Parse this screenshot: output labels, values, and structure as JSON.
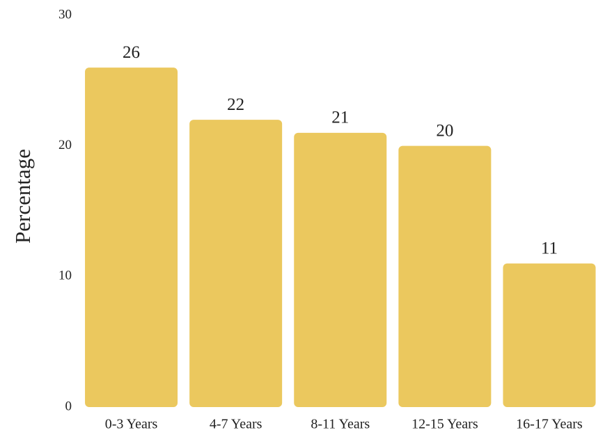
{
  "chart_data": {
    "type": "bar",
    "y_label": "Percentage",
    "categories": [
      "0-3 Years",
      "4-7 Years",
      "8-11 Years",
      "12-15 Years",
      "16-17 Years"
    ],
    "values": [
      26,
      22,
      21,
      20,
      11
    ],
    "color": "#ebc85e",
    "ylim": [
      0,
      30
    ],
    "yticks": [
      0,
      10,
      20,
      30
    ],
    "grid": false
  }
}
